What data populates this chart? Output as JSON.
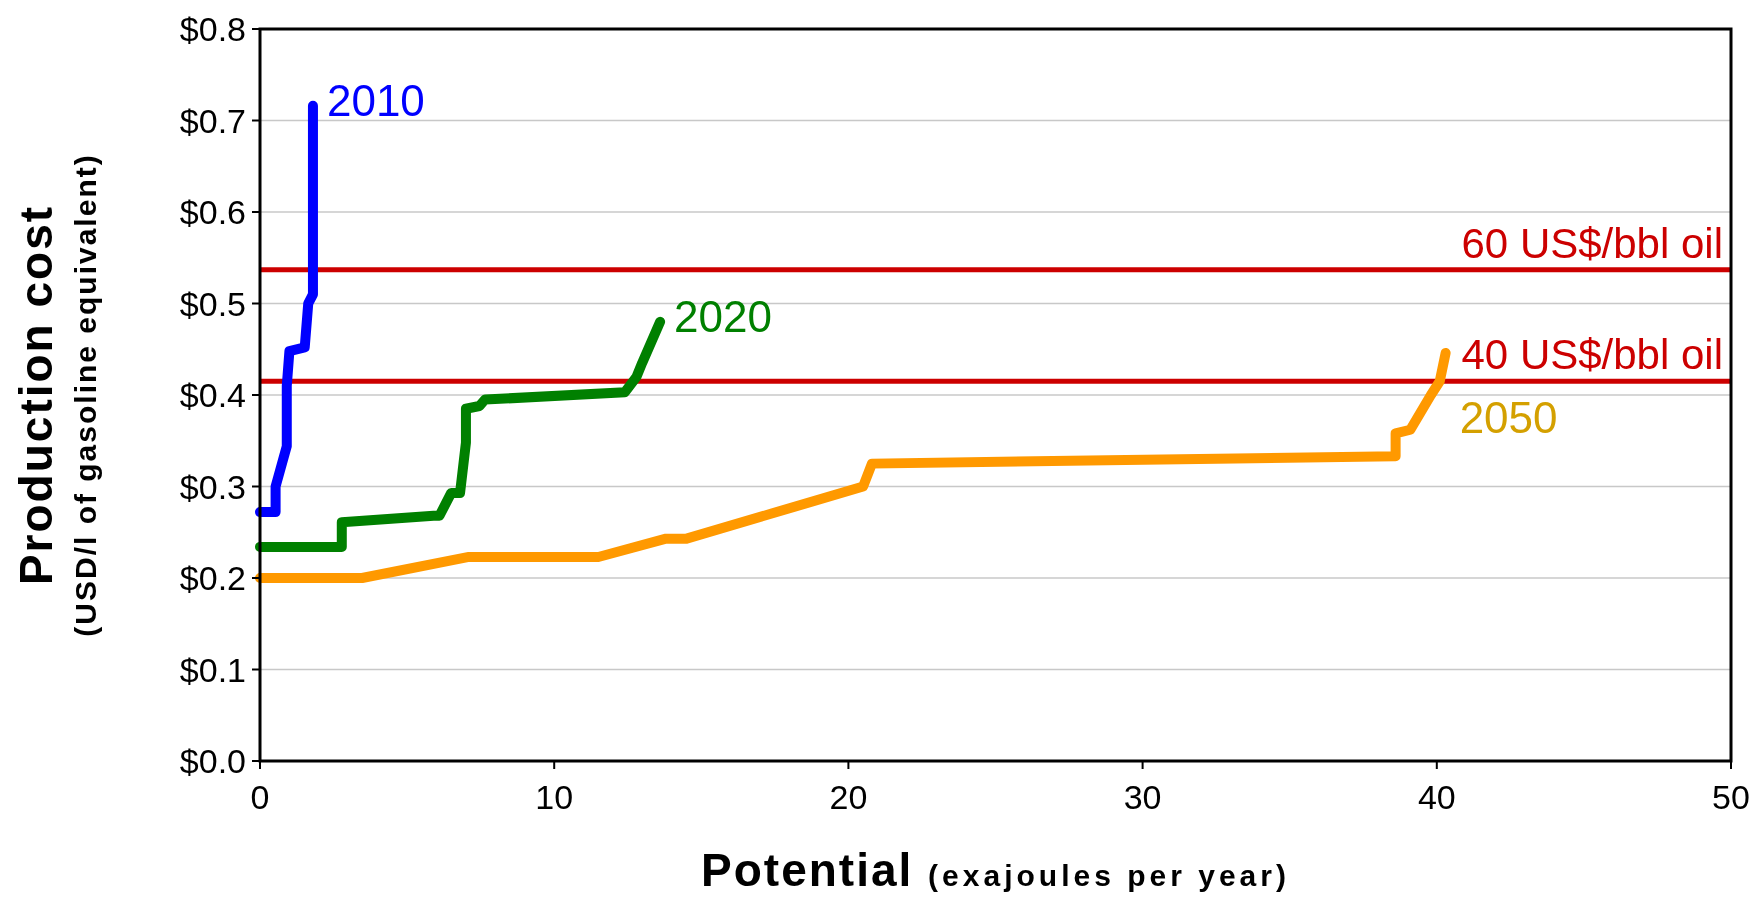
{
  "chart_data": {
    "type": "line",
    "xlabel": "Potential (exajoules per year)",
    "ylabel": "Production cost\n(USD/l of gasoline equivalent)",
    "xlim": [
      0,
      50
    ],
    "xticks": [
      0,
      10,
      20,
      30,
      40,
      50
    ],
    "ylim": [
      0,
      0.8
    ],
    "yticks": [
      {
        "value": 0,
        "label": "$0.0"
      },
      {
        "value": 0.1,
        "label": "$0.1"
      },
      {
        "value": 0.2,
        "label": "$0.2"
      },
      {
        "value": 0.3,
        "label": "$0.3"
      },
      {
        "value": 0.4,
        "label": "$0.4"
      },
      {
        "value": 0.5,
        "label": "$0.5"
      },
      {
        "value": 0.6,
        "label": "$0.6"
      },
      {
        "value": 0.7,
        "label": "$0.7"
      },
      {
        "value": 0.8,
        "label": "$0.8"
      }
    ],
    "grid": "y",
    "line_style": "solid",
    "series": [
      {
        "name": "2010",
        "color": "#0000ff",
        "x": [
          0,
          0.53,
          0.53,
          0.91,
          0.91,
          1.0,
          1.52,
          1.64,
          1.8,
          1.8
        ],
        "values": [
          0.272,
          0.272,
          0.3,
          0.344,
          0.41,
          0.448,
          0.452,
          0.5,
          0.51,
          0.716
        ]
      },
      {
        "name": "2020",
        "color": "#008000",
        "x": [
          0,
          2.78,
          2.78,
          5.9,
          6.1,
          6.5,
          6.8,
          7.0,
          7.0,
          7.46,
          7.65,
          12.4,
          12.8,
          12.99,
          13.6
        ],
        "values": [
          0.234,
          0.234,
          0.261,
          0.268,
          0.268,
          0.293,
          0.293,
          0.348,
          0.385,
          0.388,
          0.395,
          0.403,
          0.42,
          0.435,
          0.48
        ]
      },
      {
        "name": "2050",
        "color": "#ff9900",
        "x": [
          0,
          3.47,
          7.1,
          11.5,
          13.8,
          14.5,
          20.5,
          20.8,
          38.6,
          38.6,
          39.1,
          39.8,
          40.1,
          40.3
        ],
        "values": [
          0.2,
          0.2,
          0.223,
          0.223,
          0.243,
          0.243,
          0.3,
          0.325,
          0.333,
          0.358,
          0.362,
          0.4,
          0.415,
          0.446
        ]
      }
    ],
    "ref_lines": [
      {
        "axis": "y",
        "value": 0.537,
        "label": "60 US$/bbl oil",
        "color": "#cc0000"
      },
      {
        "axis": "y",
        "value": 0.415,
        "label": "40 US$/bbl oil",
        "color": "#cc0000"
      }
    ]
  }
}
